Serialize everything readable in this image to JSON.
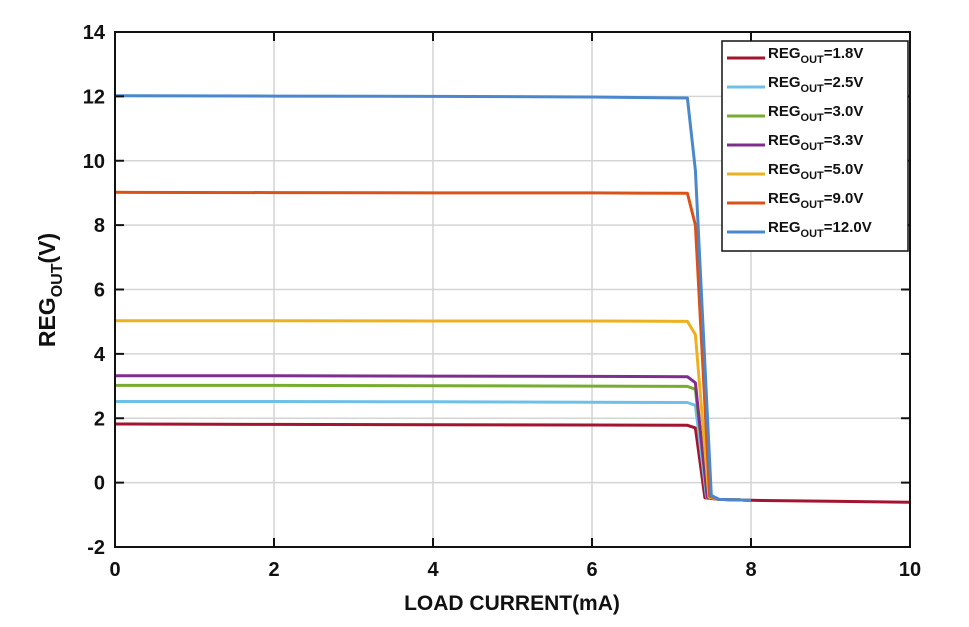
{
  "chart_data": {
    "type": "line",
    "title": "",
    "xlabel": "LOAD CURRENT(mA)",
    "ylabel": {
      "base": "REG",
      "sub": "OUT",
      "suffix": "(V)"
    },
    "xlim": [
      0,
      10
    ],
    "ylim": [
      -2,
      14
    ],
    "xticks": [
      0,
      2,
      4,
      6,
      8,
      10
    ],
    "yticks": [
      -2,
      0,
      2,
      4,
      6,
      8,
      10,
      12,
      14
    ],
    "grid": true,
    "legend": "top-right",
    "series": [
      {
        "name": "REG_OUT=1.8V",
        "label_base": "REG",
        "label_sub": "OUT",
        "label_suffix": "=1.8V",
        "color": "#A2142F",
        "points": [
          [
            0,
            1.82
          ],
          [
            2,
            1.81
          ],
          [
            4,
            1.8
          ],
          [
            6,
            1.79
          ],
          [
            7.2,
            1.78
          ],
          [
            7.3,
            1.7
          ],
          [
            7.42,
            -0.47
          ],
          [
            7.6,
            -0.52
          ],
          [
            8,
            -0.55
          ],
          [
            9,
            -0.58
          ],
          [
            10,
            -0.61
          ]
        ]
      },
      {
        "name": "REG_OUT=2.5V",
        "label_base": "REG",
        "label_sub": "OUT",
        "label_suffix": "=2.5V",
        "color": "#6FC0E8",
        "points": [
          [
            0,
            2.52
          ],
          [
            2,
            2.52
          ],
          [
            4,
            2.51
          ],
          [
            6,
            2.5
          ],
          [
            7.2,
            2.49
          ],
          [
            7.3,
            2.4
          ],
          [
            7.44,
            -0.45
          ],
          [
            7.6,
            -0.52
          ],
          [
            8,
            -0.55
          ]
        ]
      },
      {
        "name": "REG_OUT=3.0V",
        "label_base": "REG",
        "label_sub": "OUT",
        "label_suffix": "=3.0V",
        "color": "#77AC30",
        "points": [
          [
            0,
            3.02
          ],
          [
            2,
            3.02
          ],
          [
            4,
            3.01
          ],
          [
            6,
            3.0
          ],
          [
            7.2,
            2.99
          ],
          [
            7.3,
            2.9
          ],
          [
            7.45,
            -0.45
          ],
          [
            7.6,
            -0.52
          ],
          [
            8,
            -0.55
          ]
        ]
      },
      {
        "name": "REG_OUT=3.3V",
        "label_base": "REG",
        "label_sub": "OUT",
        "label_suffix": "=3.3V",
        "color": "#7E2F8E",
        "points": [
          [
            0,
            3.32
          ],
          [
            2,
            3.32
          ],
          [
            4,
            3.31
          ],
          [
            6,
            3.3
          ],
          [
            7.2,
            3.29
          ],
          [
            7.3,
            3.1
          ],
          [
            7.45,
            -0.45
          ],
          [
            7.6,
            -0.52
          ],
          [
            8,
            -0.55
          ]
        ]
      },
      {
        "name": "REG_OUT=5.0V",
        "label_base": "REG",
        "label_sub": "OUT",
        "label_suffix": "=5.0V",
        "color": "#EDB120",
        "points": [
          [
            0,
            5.03
          ],
          [
            2,
            5.03
          ],
          [
            4,
            5.02
          ],
          [
            6,
            5.02
          ],
          [
            7.2,
            5.01
          ],
          [
            7.3,
            4.6
          ],
          [
            7.47,
            -0.45
          ],
          [
            7.6,
            -0.52
          ],
          [
            8,
            -0.55
          ]
        ]
      },
      {
        "name": "REG_OUT=9.0V",
        "label_base": "REG",
        "label_sub": "OUT",
        "label_suffix": "=9.0V",
        "color": "#D95319",
        "points": [
          [
            0,
            9.02
          ],
          [
            2,
            9.01
          ],
          [
            4,
            9.0
          ],
          [
            6,
            9.0
          ],
          [
            7.2,
            8.99
          ],
          [
            7.3,
            8.0
          ],
          [
            7.48,
            -0.42
          ],
          [
            7.6,
            -0.52
          ],
          [
            8,
            -0.55
          ]
        ]
      },
      {
        "name": "REG_OUT=12.0V",
        "label_base": "REG",
        "label_sub": "OUT",
        "label_suffix": "=12.0V",
        "color": "#4A87CC",
        "points": [
          [
            0,
            12.02
          ],
          [
            2,
            12.01
          ],
          [
            4,
            12.0
          ],
          [
            6,
            11.98
          ],
          [
            7.2,
            11.95
          ],
          [
            7.3,
            9.7
          ],
          [
            7.5,
            -0.4
          ],
          [
            7.6,
            -0.52
          ],
          [
            8,
            -0.55
          ]
        ]
      }
    ]
  }
}
